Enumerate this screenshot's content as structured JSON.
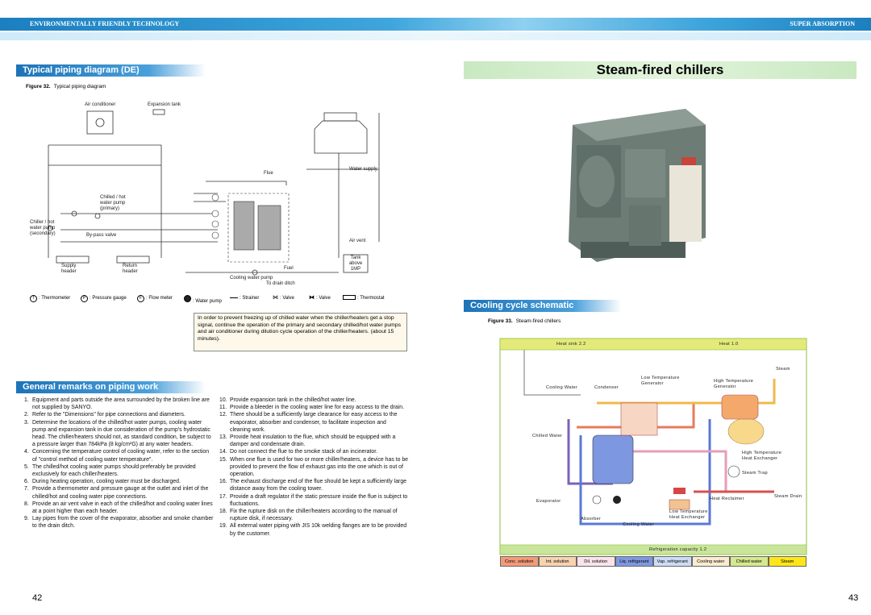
{
  "header": {
    "left": "ENVIRONMENTALLY FRIENDLY TECHNOLOGY",
    "right": "SUPER ABSORPTION"
  },
  "left_page": {
    "section_title": "Typical piping diagram (DE)",
    "figure_caption": {
      "number": "Figure 32.",
      "text": "Typical piping diagram"
    },
    "diagram_labels": [
      "Air conditioner",
      "Expansion tank",
      "Flue",
      "Water supply",
      "Chilled / hot water pump (primary)",
      "Chiller / hot water pump (secondary)",
      "By-pass valve",
      "Air vent",
      "Tank above 1MP",
      "Supply header",
      "Return header",
      "Fuel",
      "Cooling water pump",
      "To drain ditch"
    ],
    "legend": [
      {
        "symbol": "T",
        "label": ": Thermometer"
      },
      {
        "symbol": "P",
        "label": ": Pressure gauge"
      },
      {
        "symbol": "F",
        "label": ": Flow meter"
      },
      {
        "label": ": Water pump"
      },
      {
        "label": ": Strainer"
      },
      {
        "label": ": Valve"
      },
      {
        "label": ": Valve"
      },
      {
        "label": ": Thermostat"
      }
    ],
    "note": "In order to prevent freezing up of chilled water when the chiller/heaters get a stop signal, continue the operation of the primary and secondary chilled/hot water pumps and air conditioner during dilution cycle operation of the chiller/heaters. (about 15 minutes).",
    "remarks_title": "General remarks on piping work",
    "remarks": [
      {
        "number": "1.",
        "text": "Equipment and parts outside the area surrounded by the broken line are not supplied by SANYO."
      },
      {
        "number": "2.",
        "text": "Refer to the \"Dimensions\" for pipe connections and diameters."
      },
      {
        "number": "3.",
        "text": "Determine the locations of the chilled/hot water pumps, cooling water pump and expansion tank in due consideration of the pump's hydrostatic head. The chiller/heaters should not, as standard condition, be subject to a pressure larger than 784kPa (8 kg/cm²G) at any water headers."
      },
      {
        "number": "4.",
        "text": "Concerning the temperature control of cooling water, refer to the section of \"control method of cooling water temperature\"."
      },
      {
        "number": "5.",
        "text": "The chilled/hot cooling water pumps should preferably be provided exclusively for each chiller/heaters."
      },
      {
        "number": "6.",
        "text": "During heating operation, cooling water must be discharged."
      },
      {
        "number": "7.",
        "text": "Provide a thermometer and pressure gauge at the outlet and inlet of the chilled/hot and cooling water pipe connections."
      },
      {
        "number": "8.",
        "text": "Provide an air vent valve in each of the chilled/hot and cooling water lines at a point higher than each header."
      },
      {
        "number": "9.",
        "text": "Lay pipes from the cover of the evaporator, absorber and smoke chamber to the drain ditch."
      },
      {
        "number": "10.",
        "text": "Provide expansion tank in the chilled/hot water line."
      },
      {
        "number": "11.",
        "text": "Provide a bleeder in the cooling water line for easy access to the drain."
      },
      {
        "number": "12.",
        "text": "There should be a sufficiently large clearance for easy access to the evaporator, absorber and condenser, to facilitate inspection and cleaning work."
      },
      {
        "number": "13.",
        "text": "Provide heat insulation to the flue, which should be equipped with a damper and condensate drain."
      },
      {
        "number": "14.",
        "text": "Do not connect the flue to the smoke stack of an incinerator."
      },
      {
        "number": "15.",
        "text": "When one flue is used for two or more chiller/heaters, a device has to be provided to prevent the flow of exhaust gas into the one which is out of operation."
      },
      {
        "number": "16.",
        "text": "The exhaust discharge end of the flue should be kept a sufficiently large distance away from the cooling tower."
      },
      {
        "number": "17.",
        "text": "Provide a draft regulator if the static pressure inside the flue is subject to fluctuations."
      },
      {
        "number": "18.",
        "text": "Fix the rupture disk on the chiller/heaters according to the manual of rupture disk, if necessary."
      },
      {
        "number": "19.",
        "text": "All external water piping with JIS 10k welding flanges are to be provided by the customer."
      }
    ],
    "page_number": "42"
  },
  "right_page": {
    "title": "Steam-fired chillers",
    "section_title": "Cooling cycle schematic",
    "figure_caption": {
      "number": "Figure 33.",
      "text": "Steam-fired chillers"
    },
    "schematic_labels": [
      "Heat sink 2.2",
      "Heat 1.0",
      "Steam",
      "Low Temperature Generator",
      "High Temperature Generator",
      "Cooling Water",
      "Condenser",
      "Chilled Water",
      "High Temperature Heat Exchanger",
      "Steam Trap",
      "Evaporator",
      "Heat Reclaimer",
      "Steam Drain",
      "Absorber",
      "Low Temperature Heat Exchanger",
      "Cooling Water",
      "Refrigeration capacity 1.2"
    ],
    "legend": [
      {
        "label": "Conc. solution",
        "color": "#f39a78"
      },
      {
        "label": "Int. solution",
        "color": "#f9d2b0"
      },
      {
        "label": "Dil. solution",
        "color": "#fbe3ea"
      },
      {
        "label": "Liq. refrigerant",
        "color": "#7f98e2"
      },
      {
        "label": "Vap. refrigerant",
        "color": "#cddcf6"
      },
      {
        "label": "Cooling water",
        "color": "#fbecd0"
      },
      {
        "label": "Chilled water",
        "color": "#d6e98e"
      },
      {
        "label": "Steam",
        "color": "#ffe61a"
      }
    ],
    "page_number": "43"
  }
}
